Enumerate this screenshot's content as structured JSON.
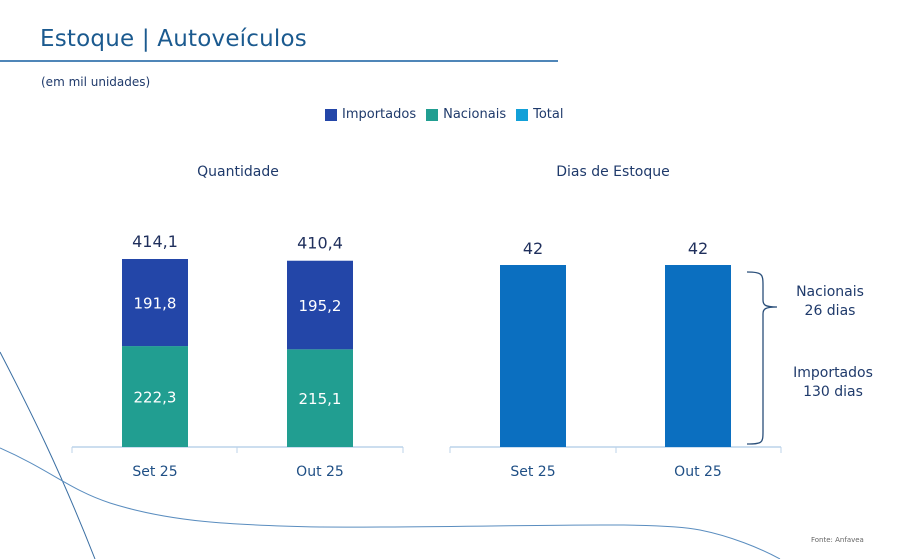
{
  "header": {
    "title": "Estoque | Autoveículos",
    "subtitle": "(em mil unidades)"
  },
  "legend": [
    {
      "label": "Importados",
      "color": "#2346a8"
    },
    {
      "label": "Nacionais",
      "color": "#219e91"
    },
    {
      "label": "Total",
      "color": "#12a0d8"
    }
  ],
  "source": "Fonte: Anfavea",
  "annotations": {
    "nacionais_label": "Nacionais",
    "nacionais_days": "26 dias",
    "importados_label": "Importados",
    "importados_days": "130 dias"
  },
  "chart_data": [
    {
      "type": "bar",
      "stacked": true,
      "title": "Quantidade",
      "categories": [
        "Set 25",
        "Out 25"
      ],
      "series": [
        {
          "name": "Nacionais",
          "color": "#219e91",
          "values": [
            222.3,
            215.1
          ],
          "labels": [
            "222,3",
            "215,1"
          ]
        },
        {
          "name": "Importados",
          "color": "#2346a8",
          "values": [
            191.8,
            195.2
          ],
          "labels": [
            "191,8",
            "195,2"
          ]
        }
      ],
      "totals": [
        414.1,
        410.4
      ],
      "total_labels": [
        "414,1",
        "410,4"
      ],
      "ylim": [
        0,
        414.1
      ],
      "grid": false
    },
    {
      "type": "bar",
      "title": "Dias de Estoque",
      "categories": [
        "Set 25",
        "Out 25"
      ],
      "series": [
        {
          "name": "Total",
          "color": "#0b6fc0",
          "values": [
            42,
            42
          ],
          "labels": [
            "42",
            "42"
          ]
        }
      ],
      "ylim": [
        0,
        42
      ],
      "grid": false
    }
  ]
}
